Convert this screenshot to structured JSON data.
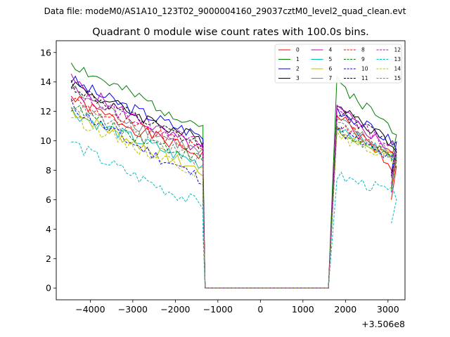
{
  "chart_data": {
    "type": "line",
    "suptitle": "Data file: modeM0/AS1A10_123T02_9000004160_29037cztM0_level2_quad_clean.evt",
    "title": "Quadrant 0 module wise count rates with 100.0s bins.",
    "xlabel": "",
    "ylabel": "",
    "offset_label": "+3.506e8",
    "xlim": [
      -4800,
      3400
    ],
    "ylim": [
      -0.8,
      16.8
    ],
    "xticks": [
      -4000,
      -3000,
      -2000,
      -1000,
      0,
      1000,
      2000,
      3000
    ],
    "xtick_labels": [
      "−4000",
      "−3000",
      "−2000",
      "−1000",
      "0",
      "1000",
      "2000",
      "3000"
    ],
    "yticks": [
      0,
      2,
      4,
      6,
      8,
      10,
      12,
      14,
      16
    ],
    "ytick_labels": [
      "0",
      "2",
      "4",
      "6",
      "8",
      "10",
      "12",
      "14",
      "16"
    ],
    "legend_position": "top-right",
    "legend_columns": 4,
    "segment1": {
      "start": -4450,
      "step": 100,
      "count": 32
    },
    "segment2": {
      "start": 1650,
      "step": 100,
      "count": 15
    },
    "gap": {
      "start": -1300,
      "end": 1650,
      "value": 0
    },
    "series": [
      {
        "name": "0",
        "color": "#ff0000",
        "dash": "solid",
        "start1": 13.0,
        "end1": 9.0,
        "start2": 11.8,
        "end2": 8.0,
        "seed": 1
      },
      {
        "name": "1",
        "color": "#008000",
        "dash": "solid",
        "start1": 15.4,
        "end1": 11.0,
        "start2": 14.0,
        "end2": 10.6,
        "seed": 2
      },
      {
        "name": "2",
        "color": "#0000ff",
        "dash": "solid",
        "start1": 14.2,
        "end1": 10.3,
        "start2": 12.2,
        "end2": 9.8,
        "seed": 3
      },
      {
        "name": "3",
        "color": "#000000",
        "dash": "solid",
        "start1": 14.0,
        "end1": 10.0,
        "start2": 12.6,
        "end2": 9.6,
        "seed": 4
      },
      {
        "name": "4",
        "color": "#bf00bf",
        "dash": "solid",
        "start1": 14.2,
        "end1": 9.3,
        "start2": 12.2,
        "end2": 9.1,
        "seed": 5
      },
      {
        "name": "5",
        "color": "#00bfbf",
        "dash": "solid",
        "start1": 12.1,
        "end1": 8.4,
        "start2": 11.1,
        "end2": 8.6,
        "seed": 6
      },
      {
        "name": "6",
        "color": "#bfbf00",
        "dash": "solid",
        "start1": 12.2,
        "end1": 7.9,
        "start2": 10.6,
        "end2": 8.9,
        "seed": 7
      },
      {
        "name": "7",
        "color": "#808080",
        "dash": "solid",
        "start1": 13.6,
        "end1": 9.1,
        "start2": 11.4,
        "end2": 8.8,
        "seed": 8
      },
      {
        "name": "8",
        "color": "#ff0000",
        "dash": "dashed",
        "start1": 12.9,
        "end1": 9.3,
        "start2": 11.2,
        "end2": 9.0,
        "seed": 9
      },
      {
        "name": "9",
        "color": "#008000",
        "dash": "dashed",
        "start1": 12.4,
        "end1": 8.7,
        "start2": 10.6,
        "end2": 8.7,
        "seed": 10
      },
      {
        "name": "10",
        "color": "#0000ff",
        "dash": "dashed",
        "start1": 12.5,
        "end1": 7.4,
        "start2": 10.8,
        "end2": 8.5,
        "seed": 11
      },
      {
        "name": "11",
        "color": "#000000",
        "dash": "dashed",
        "start1": 13.9,
        "end1": 9.6,
        "start2": 12.1,
        "end2": 9.6,
        "seed": 12
      },
      {
        "name": "12",
        "color": "#bf00bf",
        "dash": "dashed",
        "start1": 13.5,
        "end1": 9.7,
        "start2": 12.1,
        "end2": 9.4,
        "seed": 13
      },
      {
        "name": "13",
        "color": "#00bfbf",
        "dash": "dashed",
        "start1": 10.0,
        "end1": 5.6,
        "start2": 7.6,
        "end2": 6.4,
        "seed": 14
      },
      {
        "name": "14",
        "color": "#bfbf00",
        "dash": "dashed",
        "start1": 11.8,
        "end1": 7.8,
        "start2": 10.4,
        "end2": 8.7,
        "seed": 15
      },
      {
        "name": "15",
        "color": "#808080",
        "dash": "dashed",
        "start1": 12.6,
        "end1": 8.6,
        "start2": 11.3,
        "end2": 9.0,
        "seed": 16
      }
    ]
  }
}
